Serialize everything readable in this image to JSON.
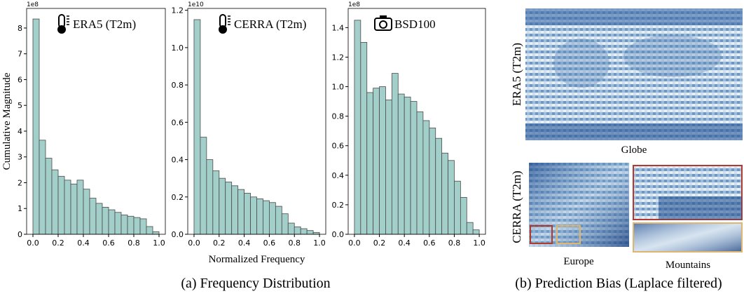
{
  "chart_data": [
    {
      "type": "histogram",
      "title": "ERA5 (T2m)",
      "icon": "thermometer",
      "ylabel": "Cumulative Magnitude",
      "offset_label": "1e8",
      "bins": [
        0,
        0.05,
        0.1,
        0.15,
        0.2,
        0.25,
        0.3,
        0.35,
        0.4,
        0.45,
        0.5,
        0.55,
        0.6,
        0.65,
        0.7,
        0.75,
        0.8,
        0.85,
        0.9,
        0.95,
        1
      ],
      "values": [
        8.35,
        3.65,
        2.95,
        2.5,
        2.25,
        2.1,
        1.95,
        2.1,
        1.75,
        1.4,
        1.2,
        1.05,
        0.95,
        0.85,
        0.75,
        0.7,
        0.65,
        0.6,
        0.3,
        0.1
      ],
      "color": "#a3cfca",
      "edgecolor": "#4a4a4a",
      "xlim": [
        -0.05,
        1.05
      ],
      "xticks": [
        {
          "value": 0,
          "label": "0.0"
        },
        0.2,
        0.4,
        0.6,
        0.8,
        {
          "value": 1,
          "label": "1.0"
        }
      ],
      "ylim": [
        0,
        8.76
      ],
      "yticks": [
        0,
        1,
        2,
        3,
        4,
        5,
        6,
        7,
        8
      ]
    },
    {
      "type": "histogram",
      "title": "CERRA (T2m)",
      "icon": "thermometer",
      "xlabel": "Normalized Frequency",
      "offset_label": "1e10",
      "bins": [
        0,
        0.05,
        0.1,
        0.15,
        0.2,
        0.25,
        0.3,
        0.35,
        0.4,
        0.45,
        0.5,
        0.55,
        0.6,
        0.65,
        0.7,
        0.75,
        0.8,
        0.85,
        0.9,
        0.95,
        1
      ],
      "values": [
        1.15,
        0.52,
        0.4,
        0.34,
        0.3,
        0.28,
        0.26,
        0.24,
        0.22,
        0.2,
        0.19,
        0.18,
        0.17,
        0.15,
        0.11,
        0.06,
        0.04,
        0.03,
        0.02,
        0.01
      ],
      "color": "#a3cfca",
      "edgecolor": "#4a4a4a",
      "xlim": [
        -0.05,
        1.05
      ],
      "xticks": [
        {
          "value": 0,
          "label": "0.0"
        },
        0.2,
        0.4,
        0.6,
        0.8,
        {
          "value": 1,
          "label": "1.0"
        }
      ],
      "ylim": [
        0,
        1.21
      ],
      "yticks": [
        {
          "value": 0,
          "label": "0.0"
        },
        0.2,
        0.4,
        0.6,
        0.8,
        {
          "value": 1,
          "label": "1.0"
        },
        1.2
      ]
    },
    {
      "type": "histogram",
      "title": "BSD100",
      "icon": "camera",
      "offset_label": "1e8",
      "bins": [
        0,
        0.05,
        0.1,
        0.15,
        0.2,
        0.25,
        0.3,
        0.35,
        0.4,
        0.45,
        0.5,
        0.55,
        0.6,
        0.65,
        0.7,
        0.75,
        0.8,
        0.85,
        0.9,
        0.95,
        1
      ],
      "values": [
        1.45,
        1.3,
        0.96,
        0.99,
        1.0,
        0.91,
        1.09,
        0.95,
        0.93,
        0.9,
        0.83,
        0.77,
        0.72,
        0.65,
        0.55,
        0.5,
        0.36,
        0.25,
        0.08,
        0.03
      ],
      "color": "#a3cfca",
      "edgecolor": "#4a4a4a",
      "xlim": [
        -0.05,
        1.05
      ],
      "xticks": [
        {
          "value": 0,
          "label": "0.0"
        },
        0.2,
        0.4,
        0.6,
        0.8,
        {
          "value": 1,
          "label": "1.0"
        }
      ],
      "ylim": [
        0,
        1.53
      ],
      "yticks": [
        {
          "value": 0,
          "label": "0.0"
        },
        0.2,
        0.4,
        0.6,
        0.8,
        {
          "value": 1,
          "label": "1.0"
        },
        1.2,
        1.4
      ]
    }
  ],
  "panel_b": {
    "row_labels": [
      "ERA5 (T2m)",
      "CERRA (T2m)"
    ],
    "image_labels": [
      "Globe",
      "Europe",
      "Mountains"
    ]
  },
  "captions": [
    "(a) Frequency Distribution",
    "(b) Prediction Bias (Laplace filtered)"
  ]
}
